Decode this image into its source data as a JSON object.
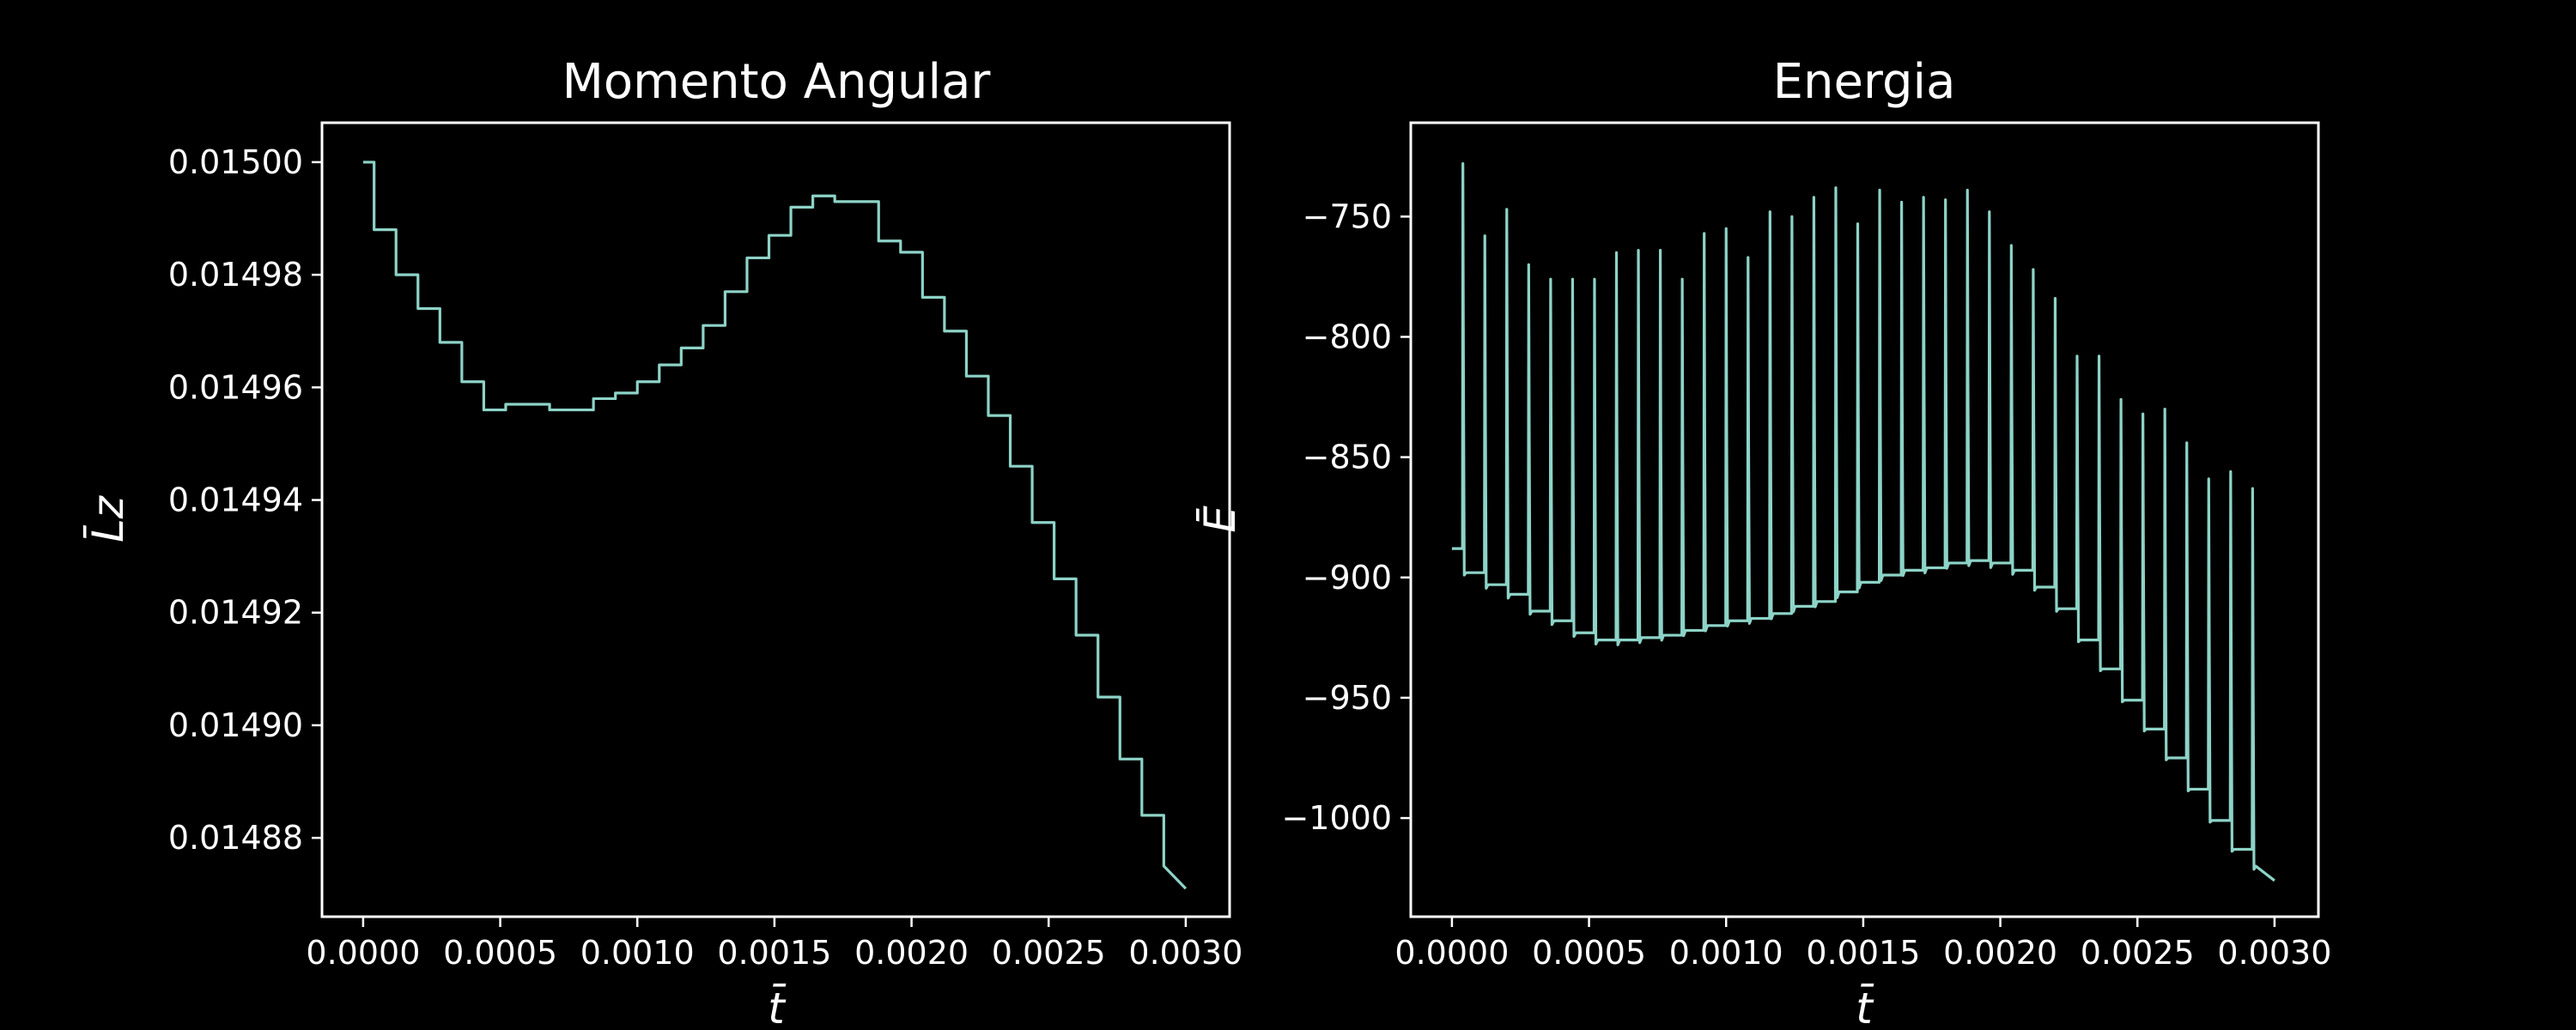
{
  "chart_data": [
    {
      "type": "line",
      "title": "Momento Angular",
      "xlabel": "t̄",
      "ylabel": "L̄z",
      "xlim": [
        -0.00015,
        0.00316
      ],
      "ylim": [
        0.014866,
        0.015007
      ],
      "xticks": [
        0.0,
        0.0005,
        0.001,
        0.0015,
        0.002,
        0.0025,
        0.003
      ],
      "xtick_labels": [
        "0.0000",
        "0.0005",
        "0.0010",
        "0.0015",
        "0.0020",
        "0.0025",
        "0.0030"
      ],
      "yticks": [
        0.01488,
        0.0149,
        0.01492,
        0.01494,
        0.01496,
        0.01498,
        0.015
      ],
      "ytick_labels": [
        "0.01488",
        "0.01490",
        "0.01492",
        "0.01494",
        "0.01496",
        "0.01498",
        "0.01500"
      ],
      "grid": false,
      "line_color": "#8dd3c7",
      "series": [
        {
          "x": [
            0.0,
            4e-05,
            4e-05,
            0.00012,
            0.00012,
            0.0002,
            0.0002,
            0.00028,
            0.00028,
            0.00036,
            0.00036,
            0.00044,
            0.00044,
            0.00052,
            0.00052,
            0.00068,
            0.00068,
            0.00084,
            0.00084,
            0.00092,
            0.00092,
            0.001,
            0.001,
            0.00108,
            0.00108,
            0.00116,
            0.00116,
            0.00124,
            0.00124,
            0.00132,
            0.00132,
            0.0014,
            0.0014,
            0.00148,
            0.00148,
            0.00156,
            0.00156,
            0.00164,
            0.00164,
            0.00172,
            0.00172,
            0.00188,
            0.00188,
            0.00196,
            0.00196,
            0.00204,
            0.00204,
            0.00212,
            0.00212,
            0.0022,
            0.0022,
            0.00228,
            0.00228,
            0.00236,
            0.00236,
            0.00244,
            0.00244,
            0.00252,
            0.00252,
            0.0026,
            0.0026,
            0.00268,
            0.00268,
            0.00276,
            0.00276,
            0.00284,
            0.00284,
            0.00292,
            0.00292,
            0.003
          ],
          "y": [
            0.015,
            0.015,
            0.014988,
            0.014988,
            0.01498,
            0.01498,
            0.014974,
            0.014974,
            0.014968,
            0.014968,
            0.014961,
            0.014961,
            0.014956,
            0.014956,
            0.014957,
            0.014957,
            0.014956,
            0.014956,
            0.014958,
            0.014958,
            0.014959,
            0.014959,
            0.014961,
            0.014961,
            0.014964,
            0.014964,
            0.014967,
            0.014967,
            0.014971,
            0.014971,
            0.014977,
            0.014977,
            0.014983,
            0.014983,
            0.014987,
            0.014987,
            0.014992,
            0.014992,
            0.014994,
            0.014994,
            0.014993,
            0.014993,
            0.014986,
            0.014986,
            0.014984,
            0.014984,
            0.014976,
            0.014976,
            0.01497,
            0.01497,
            0.014962,
            0.014962,
            0.014955,
            0.014955,
            0.014946,
            0.014946,
            0.014936,
            0.014936,
            0.014926,
            0.014926,
            0.014916,
            0.014916,
            0.014905,
            0.014905,
            0.014894,
            0.014894,
            0.014884,
            0.014884,
            0.014875,
            0.014871
          ]
        }
      ]
    },
    {
      "type": "line",
      "title": "Energia",
      "xlabel": "t̄",
      "ylabel": "Ē",
      "xlim": [
        -0.00015,
        0.00316
      ],
      "ylim": [
        -1041,
        -711
      ],
      "xticks": [
        0.0,
        0.0005,
        0.001,
        0.0015,
        0.002,
        0.0025,
        0.003
      ],
      "xtick_labels": [
        "0.0000",
        "0.0005",
        "0.0010",
        "0.0015",
        "0.0020",
        "0.0025",
        "0.0030"
      ],
      "yticks": [
        -1000,
        -950,
        -900,
        -850,
        -800,
        -750
      ],
      "ytick_labels": [
        "−1000",
        "−950",
        "−900",
        "−850",
        "−800",
        "−750"
      ],
      "grid": false,
      "line_color": "#8dd3c7",
      "spike_series": {
        "x_start": 0.0,
        "x_end": 0.003,
        "initial_level": -888,
        "spike_times": [
          4e-05,
          0.00012,
          0.0002,
          0.00028,
          0.00036,
          0.00044,
          0.00052,
          0.0006,
          0.00068,
          0.00076,
          0.00084,
          0.00092,
          0.001,
          0.00108,
          0.00116,
          0.00124,
          0.00132,
          0.0014,
          0.00148,
          0.00156,
          0.00164,
          0.00172,
          0.0018,
          0.00188,
          0.00196,
          0.00204,
          0.00212,
          0.0022,
          0.00228,
          0.00236,
          0.00244,
          0.00252,
          0.0026,
          0.00268,
          0.00276,
          0.00284,
          0.00292
        ],
        "spike_peaks": [
          -728,
          -758,
          -747,
          -770,
          -776,
          -776,
          -776,
          -765,
          -764,
          -764,
          -776,
          -757,
          -755,
          -767,
          -748,
          -750,
          -742,
          -738,
          -753,
          -739,
          -744,
          -742,
          -743,
          -739,
          -748,
          -762,
          -772,
          -784,
          -808,
          -808,
          -826,
          -832,
          -830,
          -844,
          -859,
          -856,
          -863
        ],
        "trough_levels": [
          -898,
          -903,
          -907,
          -914,
          -918,
          -923,
          -926,
          -926,
          -925,
          -924,
          -922,
          -920,
          -918,
          -917,
          -915,
          -912,
          -910,
          -906,
          -902,
          -899,
          -897,
          -896,
          -894,
          -893,
          -894,
          -897,
          -904,
          -913,
          -926,
          -938,
          -951,
          -963,
          -975,
          -988,
          -1001,
          -1013,
          -1020
        ],
        "end_level": -1026
      }
    }
  ]
}
